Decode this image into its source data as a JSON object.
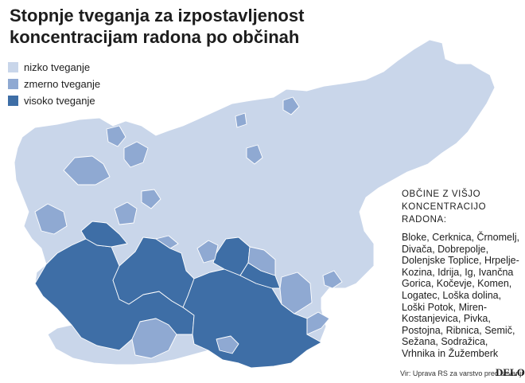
{
  "header": {
    "title": "Stopnje tveganja za izpostavljenost koncentracijam radona po občinah"
  },
  "legend": [
    {
      "label": "nizko tveganje",
      "color": "#c9d6ea"
    },
    {
      "label": "zmerno tveganje",
      "color": "#8fa9d2"
    },
    {
      "label": "visoko tveganje",
      "color": "#3e6ea6"
    }
  ],
  "map": {
    "border_color": "#ffffff"
  },
  "side_panel": {
    "heading_line1": "OBČINE Z VIŠJO",
    "heading_line2": "KONCENTRACIJO RADONA:",
    "municipalities": "Bloke, Cerknica, Črnomelj, Divača, Dobrepolje, Dolenjske Toplice, Hrpelje-Kozina, Idrija, Ig, Ivančna Gorica, Kočevje, Komen, Logatec, Loška dolina, Loški Potok, Miren-Kostanjevica, Pivka, Postojna, Ribnica, Semič, Sežana, Sodražica, Vrhnika in Žužemberk"
  },
  "footer": {
    "source": "Vir: Uprava RS za varstvo pred sevanji",
    "brand": "DELO"
  }
}
